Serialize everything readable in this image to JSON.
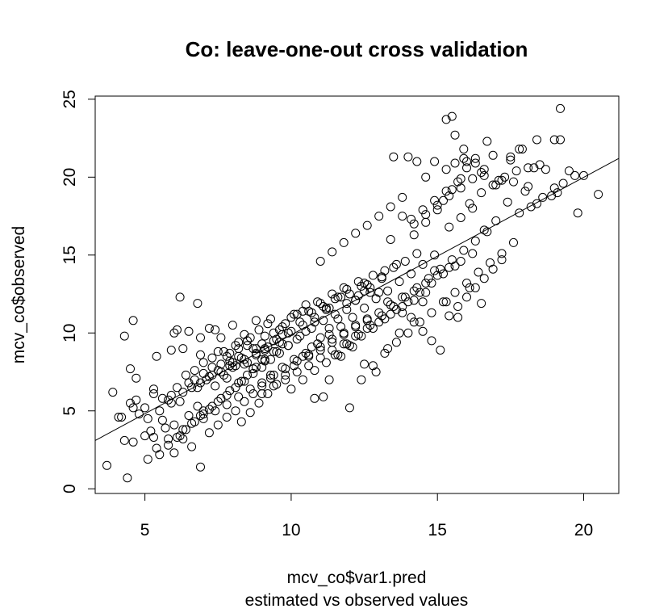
{
  "chart_data": {
    "type": "scatter",
    "title": "Co: leave-one-out cross validation",
    "xlabel": "mcv_co$var1.pred",
    "subtitle": "estimated vs observed values",
    "ylabel": "mcv_co$observed",
    "xlim": [
      3.3,
      21.2
    ],
    "ylim": [
      -0.3,
      25.2
    ],
    "x_ticks": [
      5,
      10,
      15,
      20
    ],
    "y_ticks": [
      0,
      5,
      10,
      15,
      20,
      25
    ],
    "grid": false,
    "legend": "none",
    "point_color": "#000000",
    "fit_line": {
      "x": [
        3.3,
        21.2
      ],
      "y": [
        3.1,
        21.2
      ]
    },
    "x": [
      3.7,
      4.4,
      4.3,
      4.5,
      4.6,
      4.8,
      5.0,
      5.2,
      5.4,
      5.6,
      5.8,
      6.0,
      6.2,
      6.5,
      6.8,
      7.0,
      3.9,
      4.2,
      4.7,
      5.0,
      5.3,
      5.6,
      5.9,
      6.2,
      6.5,
      6.8,
      7.1,
      7.4,
      7.7,
      8.0,
      8.3,
      4.1,
      4.6,
      5.1,
      5.5,
      5.9,
      6.3,
      6.6,
      6.9,
      7.2,
      7.5,
      7.8,
      8.1,
      8.4,
      8.7,
      9.0,
      4.5,
      4.7,
      5.3,
      5.8,
      6.1,
      6.4,
      6.7,
      7.0,
      7.3,
      7.6,
      7.9,
      8.2,
      8.5,
      8.8,
      9.1,
      4.6,
      5.4,
      5.9,
      6.3,
      6.7,
      7.0,
      7.3,
      7.6,
      7.9,
      8.2,
      8.5,
      8.8,
      9.1,
      9.4,
      9.7,
      4.3,
      6.2,
      6.0,
      6.8,
      7.2,
      7.6,
      8.0,
      8.4,
      8.8,
      9.2,
      9.6,
      10.0,
      10.4,
      10.8,
      11.2,
      6.1,
      6.5,
      6.9,
      7.3,
      7.7,
      8.1,
      8.5,
      8.9,
      9.3,
      9.7,
      10.1,
      10.5,
      10.9,
      11.3,
      11.7,
      6.9,
      7.4,
      7.8,
      8.2,
      8.6,
      9.0,
      9.4,
      9.8,
      10.2,
      10.6,
      11.0,
      11.4,
      11.8,
      12.2,
      12.6,
      7.5,
      7.9,
      8.3,
      8.7,
      9.1,
      9.5,
      9.9,
      10.3,
      10.7,
      11.1,
      11.5,
      11.9,
      12.3,
      12.7,
      13.1,
      8.0,
      8.4,
      8.8,
      9.2,
      9.6,
      10.0,
      10.4,
      10.8,
      11.2,
      11.6,
      12.0,
      12.4,
      12.8,
      13.2,
      13.6,
      8.7,
      9.1,
      9.5,
      9.9,
      10.3,
      10.7,
      11.1,
      11.5,
      11.9,
      12.3,
      12.7,
      13.1,
      13.5,
      13.9,
      14.3,
      9.3,
      9.7,
      10.1,
      10.5,
      10.9,
      11.3,
      11.7,
      12.1,
      12.5,
      12.9,
      13.3,
      13.7,
      14.1,
      14.5,
      14.9,
      10.0,
      10.4,
      10.8,
      11.2,
      11.6,
      12.0,
      12.4,
      12.8,
      13.2,
      13.6,
      14.0,
      14.4,
      14.8,
      15.2,
      15.6,
      11.1,
      11.5,
      11.9,
      12.3,
      12.7,
      13.1,
      13.5,
      13.9,
      14.3,
      14.7,
      15.1,
      15.5,
      15.9,
      16.3,
      16.7,
      12.0,
      12.4,
      12.8,
      13.2,
      13.6,
      14.0,
      14.4,
      14.8,
      15.2,
      15.6,
      16.0,
      16.4,
      16.8,
      17.2,
      17.6,
      13.4,
      13.8,
      14.2,
      14.6,
      15.0,
      15.4,
      15.8,
      16.2,
      16.6,
      17.0,
      17.4,
      17.8,
      18.2,
      18.6,
      19.0,
      14.1,
      14.5,
      14.9,
      15.3,
      15.7,
      16.1,
      16.5,
      16.9,
      17.3,
      17.7,
      18.1,
      18.5,
      18.9,
      19.3,
      19.7,
      15.2,
      15.5,
      15.8,
      16.0,
      16.3,
      16.6,
      16.9,
      17.2,
      17.5,
      17.8,
      18.1,
      18.4,
      19.0,
      19.8,
      20.5,
      12.5,
      13.0,
      13.3,
      13.8,
      14.2,
      14.5,
      14.8,
      15.1,
      15.4,
      15.7,
      16.0,
      16.3,
      16.6,
      16.9,
      17.2,
      11.0,
      11.4,
      11.8,
      12.2,
      12.6,
      13.0,
      13.4,
      13.8,
      14.2,
      14.6,
      15.0,
      15.4,
      15.8,
      16.2,
      16.6,
      10.6,
      11.0,
      11.4,
      11.8,
      12.2,
      12.6,
      13.0,
      13.4,
      13.8,
      14.2,
      14.6,
      15.0,
      15.4,
      15.8,
      16.2,
      9.0,
      9.4,
      9.8,
      10.2,
      10.6,
      11.0,
      11.4,
      11.8,
      12.2,
      12.6,
      13.0,
      13.4,
      13.8,
      14.2,
      14.6,
      7.0,
      7.4,
      7.8,
      8.2,
      8.6,
      9.0,
      9.4,
      9.8,
      10.2,
      10.6,
      11.0,
      11.4,
      11.8,
      12.2,
      12.6,
      5.5,
      5.8,
      6.1,
      6.4,
      6.7,
      7.0,
      7.3,
      7.6,
      7.9,
      8.2,
      8.5,
      8.8,
      9.1,
      9.4,
      9.7,
      15.5,
      15.9,
      16.3,
      16.7,
      17.1,
      17.5,
      17.9,
      18.3,
      18.7,
      19.1,
      19.5,
      20.0,
      15.3,
      15.6,
      15.9,
      13.5,
      14.0,
      14.3,
      14.6,
      14.9,
      15.3,
      15.6,
      16.0,
      16.5,
      17.0,
      17.6,
      18.0,
      18.4,
      19.2,
      19.2,
      10.8,
      11.3,
      11.7,
      12.1,
      12.5,
      12.9,
      13.3,
      13.7,
      14.1,
      14.5,
      14.9,
      15.3,
      15.7,
      16.1,
      16.5,
      8.3,
      8.6,
      8.9,
      9.2,
      9.5,
      9.8,
      10.1,
      10.4,
      10.7,
      11.0,
      11.3,
      11.6,
      11.9,
      12.2,
      12.5,
      6.3,
      6.6,
      6.9,
      7.2,
      7.5,
      7.8,
      8.1,
      8.4,
      8.7,
      9.0,
      9.3,
      9.6,
      9.9,
      10.2,
      10.5,
      5.1,
      5.3,
      5.7,
      6.0,
      6.3,
      6.6,
      6.9,
      7.2,
      7.5,
      7.8,
      8.1,
      8.4,
      8.7,
      9.0,
      9.3
    ],
    "y": [
      1.5,
      0.7,
      3.1,
      5.5,
      3.0,
      4.8,
      3.4,
      3.7,
      2.6,
      4.4,
      3.2,
      4.1,
      3.4,
      4.7,
      5.3,
      5.0,
      6.2,
      4.6,
      7.1,
      5.2,
      6.1,
      5.8,
      6.0,
      5.6,
      6.8,
      6.5,
      7.0,
      6.6,
      7.3,
      7.8,
      6.9,
      4.6,
      5.2,
      4.5,
      5.0,
      5.5,
      6.2,
      6.5,
      6.8,
      7.2,
      7.6,
      7.1,
      7.9,
      8.0,
      7.7,
      8.3,
      7.7,
      5.7,
      6.4,
      5.7,
      6.5,
      7.3,
      7.0,
      7.4,
      7.8,
      7.5,
      8.2,
      8.5,
      8.1,
      8.7,
      9.0,
      10.8,
      8.5,
      8.9,
      9.0,
      7.6,
      8.1,
      8.4,
      8.0,
      8.7,
      9.4,
      9.2,
      9.0,
      9.8,
      9.5,
      9.9,
      9.8,
      12.3,
      10.0,
      11.9,
      10.3,
      9.7,
      10.5,
      9.9,
      10.8,
      10.6,
      10.2,
      11.0,
      11.4,
      10.7,
      11.5,
      10.2,
      10.1,
      8.6,
      7.3,
      8.8,
      9.2,
      9.5,
      10.2,
      10.9,
      10.4,
      11.2,
      11.8,
      12.0,
      11.6,
      12.3,
      9.7,
      10.2,
      8.5,
      9.0,
      9.7,
      9.3,
      10.0,
      10.6,
      11.2,
      11.4,
      11.9,
      12.5,
      12.9,
      12.1,
      13.1,
      8.8,
      7.9,
      8.4,
      9.0,
      8.9,
      9.6,
      10.0,
      10.7,
      11.3,
      11.7,
      12.2,
      12.8,
      13.3,
      12.6,
      13.6,
      8.1,
      8.3,
      8.6,
      9.1,
      9.4,
      10.1,
      10.5,
      11.0,
      11.6,
      12.3,
      12.5,
      13.0,
      13.7,
      14.0,
      14.4,
      7.7,
      8.2,
      8.8,
      9.2,
      9.8,
      10.3,
      10.8,
      11.2,
      11.9,
      12.4,
      12.9,
      13.5,
      14.2,
      14.6,
      15.1,
      7.3,
      7.8,
      8.3,
      8.7,
      9.3,
      9.9,
      10.4,
      11.0,
      11.6,
      12.2,
      12.7,
      13.3,
      13.8,
      14.4,
      15.0,
      6.4,
      7.0,
      7.6,
      8.1,
      8.6,
      9.2,
      9.8,
      10.3,
      10.9,
      11.5,
      12.0,
      12.6,
      13.2,
      13.8,
      14.3,
      5.9,
      8.6,
      9.3,
      9.9,
      10.5,
      11.1,
      11.7,
      12.3,
      12.9,
      13.5,
      14.1,
      14.7,
      15.3,
      15.9,
      16.5,
      5.2,
      7.0,
      7.9,
      8.7,
      9.4,
      10.0,
      10.7,
      11.3,
      12.0,
      12.6,
      13.2,
      13.9,
      14.5,
      15.1,
      15.8,
      16.0,
      17.5,
      16.3,
      17.1,
      17.9,
      16.8,
      17.4,
      18.0,
      16.6,
      17.2,
      18.4,
      17.7,
      18.1,
      18.7,
      19.3,
      17.3,
      17.9,
      18.5,
      19.1,
      19.7,
      18.3,
      19.0,
      19.5,
      20.0,
      20.4,
      19.4,
      20.8,
      18.8,
      19.6,
      20.1,
      18.5,
      19.2,
      19.9,
      20.6,
      21.2,
      20.1,
      21.4,
      19.8,
      21.1,
      21.8,
      20.6,
      22.4,
      22.4,
      17.7,
      18.9,
      13.2,
      12.6,
      12.0,
      11.3,
      10.7,
      10.1,
      9.5,
      8.9,
      11.1,
      11.7,
      12.3,
      12.9,
      13.5,
      14.1,
      14.7,
      14.6,
      15.2,
      15.8,
      16.4,
      16.9,
      17.5,
      18.1,
      18.7,
      17.0,
      17.6,
      18.2,
      18.8,
      19.3,
      19.9,
      20.5,
      8.5,
      8.9,
      9.4,
      9.9,
      10.4,
      10.8,
      11.3,
      11.8,
      12.3,
      12.7,
      13.2,
      13.7,
      14.2,
      14.6,
      15.1,
      6.1,
      6.6,
      7.0,
      7.5,
      7.9,
      8.4,
      8.9,
      9.3,
      9.8,
      10.3,
      10.7,
      11.2,
      11.7,
      12.1,
      12.6,
      4.5,
      5.0,
      5.4,
      5.9,
      6.4,
      6.8,
      7.3,
      7.7,
      8.2,
      8.6,
      9.1,
      9.6,
      10.0,
      10.5,
      10.9,
      2.2,
      2.8,
      3.3,
      3.8,
      4.3,
      4.8,
      5.3,
      5.8,
      6.3,
      6.8,
      7.3,
      7.8,
      8.3,
      8.8,
      9.3,
      23.9,
      21.8,
      20.9,
      22.3,
      19.8,
      21.3,
      21.8,
      20.6,
      20.5,
      19.0,
      20.4,
      20.1,
      23.7,
      22.7,
      21.2,
      21.3,
      21.3,
      21.0,
      20.0,
      21.0,
      20.5,
      20.9,
      21.0,
      20.3,
      19.5,
      19.7,
      19.1,
      18.3,
      24.4,
      22.4,
      5.8,
      7.0,
      8.5,
      9.1,
      8.0,
      7.5,
      9.0,
      10.0,
      11.0,
      12.0,
      14.0,
      12.0,
      11.0,
      12.9,
      11.9,
      4.3,
      4.9,
      5.5,
      6.1,
      6.7,
      7.3,
      7.9,
      8.5,
      9.1,
      9.7,
      10.3,
      10.9,
      11.5,
      12.1,
      12.7,
      3.8,
      4.2,
      4.7,
      5.1,
      5.6,
      6.0,
      6.5,
      6.9,
      7.4,
      7.8,
      8.3,
      8.7,
      9.2,
      9.6,
      10.1,
      1.9,
      3.3,
      3.9,
      2.3,
      3.2,
      2.7,
      1.4,
      3.6,
      4.1,
      4.6,
      5.0,
      5.6,
      6.1,
      6.6,
      7.1
    ]
  }
}
